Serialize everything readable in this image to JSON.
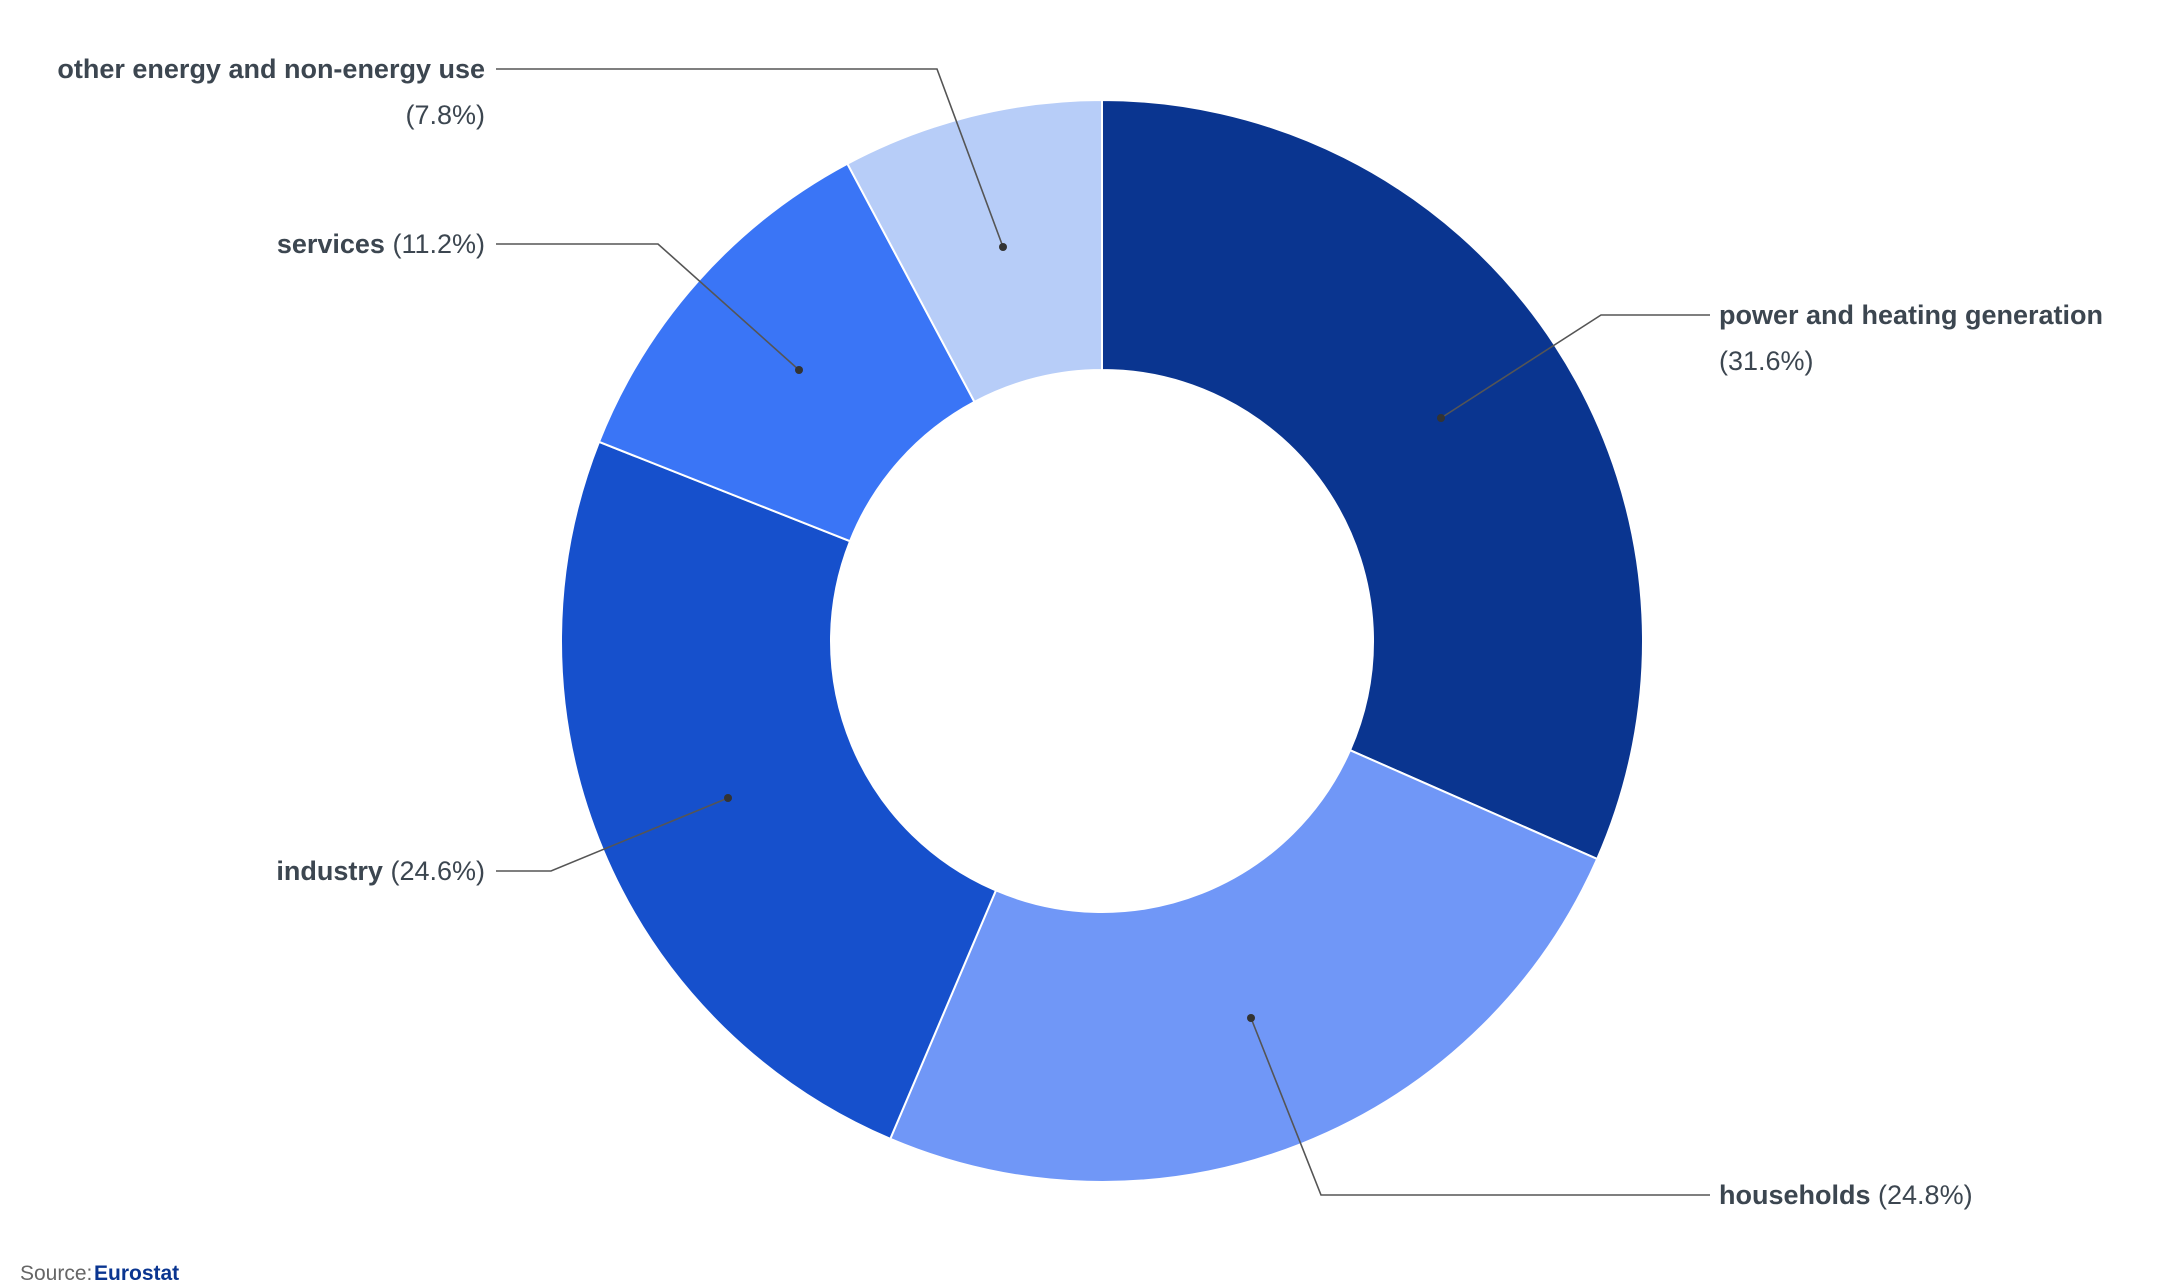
{
  "chart_data": {
    "type": "donut",
    "categories": [
      "power and heating generation",
      "households",
      "industry",
      "services",
      "other energy and non-energy use"
    ],
    "values": [
      31.6,
      24.8,
      24.6,
      11.2,
      7.8
    ],
    "value_labels": [
      "(31.6%)",
      "(24.8%)",
      "(24.6%)",
      "(11.2%)",
      "(7.8%)"
    ],
    "colors": [
      "#0a3590",
      "#7097f7",
      "#1650cc",
      "#3a75f6",
      "#b7cdf8"
    ],
    "source_label": "Source:",
    "source": "Eurostat"
  }
}
